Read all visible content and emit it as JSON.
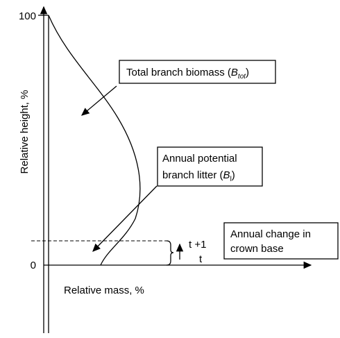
{
  "axes": {
    "y_title": "Relative height, %",
    "x_title": "Relative mass, %",
    "y_top_label": "100",
    "y_bottom_label": "0"
  },
  "boxes": [
    {
      "lines": [
        "Total branch biomass ("
      ],
      "symbol": "B",
      "subscript": "tot",
      "close": ")"
    },
    {
      "lines": [
        "Annual potential",
        "branch litter ("
      ],
      "symbol": "B",
      "subscript": "l",
      "close": ")"
    },
    {
      "lines": [
        "Annual change in",
        "crown base"
      ]
    }
  ],
  "markers": {
    "upper": "t +1",
    "lower": "t"
  }
}
